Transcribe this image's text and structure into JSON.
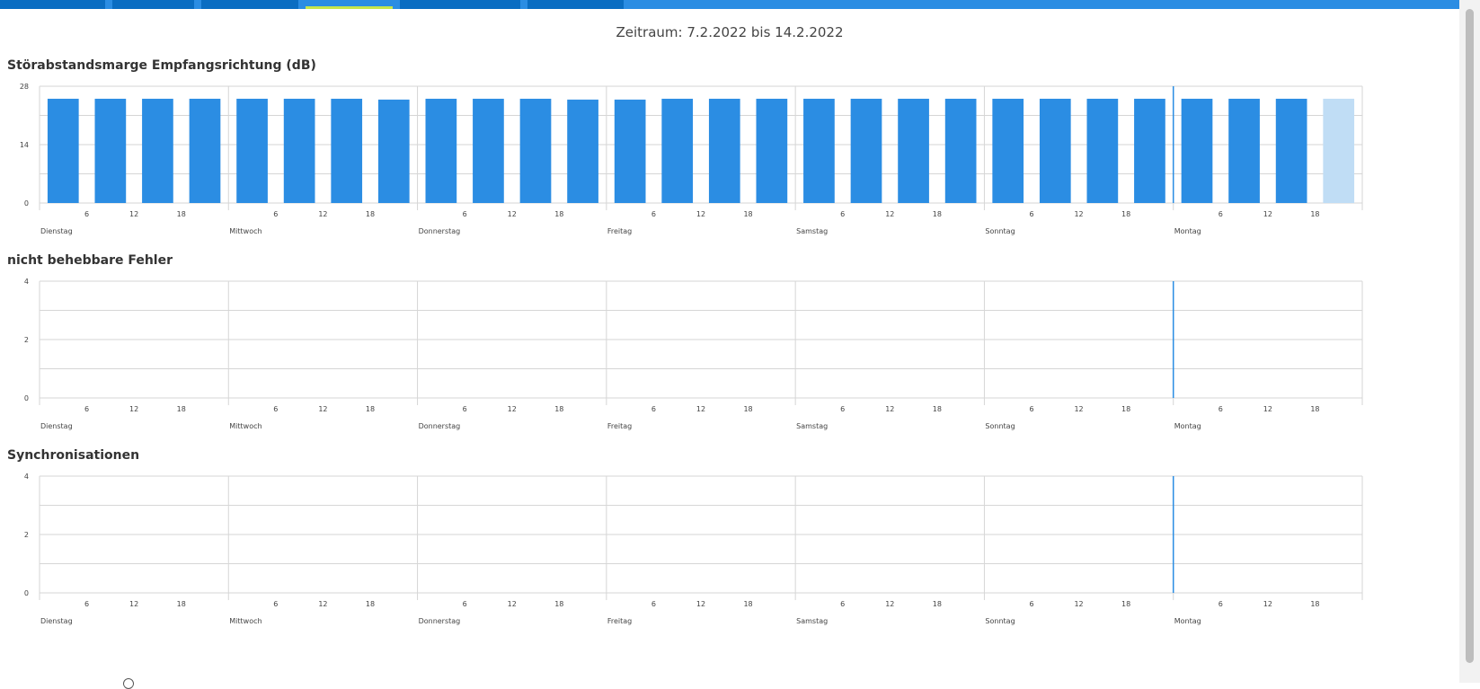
{
  "tabs": [
    {
      "label": ""
    },
    {
      "label": ""
    },
    {
      "label": ""
    },
    {
      "label": "",
      "active": true
    },
    {
      "label": ""
    },
    {
      "label": ""
    }
  ],
  "period": "Zeitraum: 7.2.2022 bis 14.2.2022",
  "colors": {
    "bar": "#2b8de3",
    "bar_current": "#c0ddf5",
    "now_line": "#2b8de3",
    "grid": "#d6d6d6"
  },
  "days": [
    "Dienstag",
    "Mittwoch",
    "Donnerstag",
    "Freitag",
    "Samstag",
    "Sonntag",
    "Montag"
  ],
  "hour_ticks": [
    "6",
    "12",
    "18"
  ],
  "charts": [
    {
      "title": "Störabstandsmarge Empfangsrichtung (dB)",
      "chart_data": {
        "type": "bar",
        "ylim": [
          0,
          28
        ],
        "yticks": [
          "28",
          "14",
          "0"
        ],
        "values": [
          25,
          25,
          25,
          25,
          25,
          25,
          25,
          24.8,
          25,
          25,
          25,
          24.8,
          24.8,
          25,
          25,
          25,
          25,
          25,
          25,
          25,
          25,
          25,
          25,
          25,
          25,
          25,
          25,
          25
        ],
        "current_index": 27
      }
    },
    {
      "title": "nicht behebbare Fehler",
      "chart_data": {
        "type": "bar",
        "ylim": [
          0,
          4
        ],
        "yticks": [
          "4",
          "2",
          "0"
        ],
        "values": []
      }
    },
    {
      "title": "Synchronisationen",
      "chart_data": {
        "type": "bar",
        "ylim": [
          0,
          4
        ],
        "yticks": [
          "4",
          "2",
          "0"
        ],
        "values": []
      }
    }
  ]
}
